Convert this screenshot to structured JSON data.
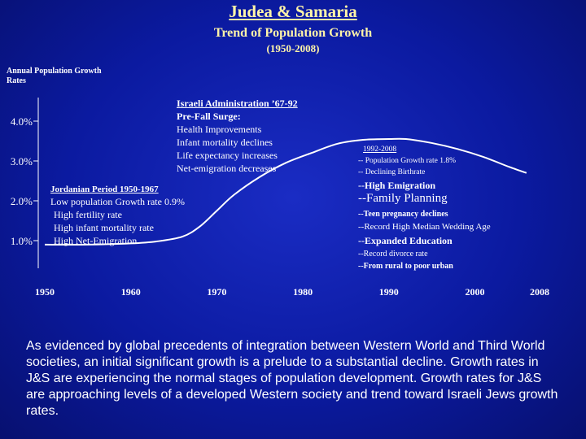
{
  "header": {
    "title": "Judea & Samaria",
    "subtitle": "Trend of Population Growth",
    "period": "(1950-2008)"
  },
  "chart_data": {
    "type": "line",
    "title": "Trend of Population Growth",
    "ylabel": "Annual Population Growth Rates",
    "xlabel": "",
    "x_ticks": [
      "1950",
      "1960",
      "1970",
      "1980",
      "1990",
      "2000",
      "2008"
    ],
    "y_ticks": [
      "1.0%",
      "2.0%",
      "3.0%",
      "4.0%"
    ],
    "xlim": [
      1950,
      2008
    ],
    "ylim": [
      0.7,
      4.2
    ],
    "grid": false,
    "series": [
      {
        "color": "#ffffff",
        "x": [
          1950,
          1955,
          1960,
          1963,
          1966,
          1968,
          1970,
          1972,
          1975,
          1978,
          1981,
          1984,
          1987,
          1990,
          1992,
          1995,
          1998,
          2001,
          2004,
          2006
        ],
        "y": [
          0.9,
          0.9,
          0.93,
          0.98,
          1.1,
          1.35,
          1.75,
          2.15,
          2.6,
          2.95,
          3.2,
          3.43,
          3.53,
          3.55,
          3.55,
          3.45,
          3.3,
          3.1,
          2.85,
          2.7
        ]
      }
    ]
  },
  "annotations": {
    "israeli": {
      "heading": "Israeli Administration ’67-92",
      "subheading": "Pre-Fall Surge:",
      "items": [
        "Health Improvements",
        "Infant mortality declines",
        "Life expectancy increases",
        "Net-emigration decreases"
      ]
    },
    "jordanian": {
      "heading": "Jordanian Period 1950-1967",
      "items": [
        "Low population Growth rate  0.9%",
        "High fertility rate",
        "High infant mortality rate",
        "High Net-Emigration"
      ]
    },
    "recent": {
      "heading": "1992-2008",
      "line1": "-- Population Growth rate 1.8%",
      "line2": "-- Declining Birthrate",
      "line3": "--High Emigration",
      "line4": "--Family Planning",
      "line5": "--Teen pregnancy declines",
      "line6": "--Record High Median Wedding Age",
      "line7": "--Expanded Education",
      "line8": "--Record divorce rate",
      "line9": "--From rural to poor urban"
    }
  },
  "bottom_text": "As evidenced by global precedents of integration between Western World and Third World societies, an initial significant growth is a prelude to a substantial decline. Growth rates in J&S are experiencing the normal stages of population development. Growth rates for J&S are approaching levels of a developed Western society and trend toward Israeli Jews growth rates."
}
